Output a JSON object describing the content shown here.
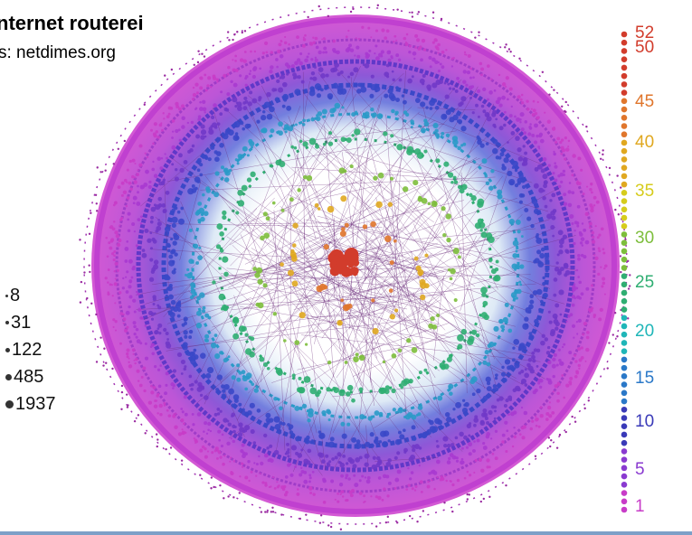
{
  "title": "nternet routerei",
  "subtitle": "s: netdimes.org",
  "size_legend": [
    "8",
    "31",
    "122",
    "485",
    "1937"
  ],
  "shell_legend": [
    {
      "label": "52",
      "color": "#d23c2c"
    },
    {
      "label": "50",
      "color": "#d23c2c"
    },
    {
      "label": "45",
      "color": "#e0762c"
    },
    {
      "label": "40",
      "color": "#e0a820"
    },
    {
      "label": "35",
      "color": "#d6cc1c"
    },
    {
      "label": "30",
      "color": "#7dbe3c"
    },
    {
      "label": "25",
      "color": "#2fae72"
    },
    {
      "label": "20",
      "color": "#1fb6b8"
    },
    {
      "label": "15",
      "color": "#2a78c8"
    },
    {
      "label": "10",
      "color": "#3a3ab8"
    },
    {
      "label": "5",
      "color": "#8a3ad0"
    },
    {
      "label": "1",
      "color": "#c83cc8"
    }
  ]
}
